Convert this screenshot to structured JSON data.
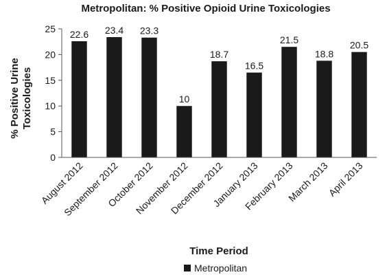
{
  "chart_data": {
    "type": "bar",
    "title": "Metropolitan: % Positive Opioid Urine Toxicologies",
    "xlabel": "Time Period",
    "ylabel": "% Positive Urine Toxicologies",
    "ylabel_lines": [
      "% Positive Urine",
      "Toxicologies"
    ],
    "categories": [
      "August 2012",
      "September 2012",
      "October 2012",
      "November 2012",
      "December 2012",
      "January 2013",
      "February 2013",
      "March 2013",
      "April 2013"
    ],
    "series": [
      {
        "name": "Metropolitan",
        "values": [
          22.6,
          23.4,
          23.3,
          10,
          18.7,
          16.5,
          21.5,
          18.8,
          20.5
        ],
        "color": "#1a1a1a"
      }
    ],
    "data_labels": [
      "22.6",
      "23.4",
      "23.3",
      "10",
      "18.7",
      "16.5",
      "21.5",
      "18.8",
      "20.5"
    ],
    "ylim": [
      0,
      25
    ],
    "yticks": [
      0,
      5,
      10,
      15,
      20,
      25
    ],
    "grid": false,
    "legend": "bottom-center"
  }
}
